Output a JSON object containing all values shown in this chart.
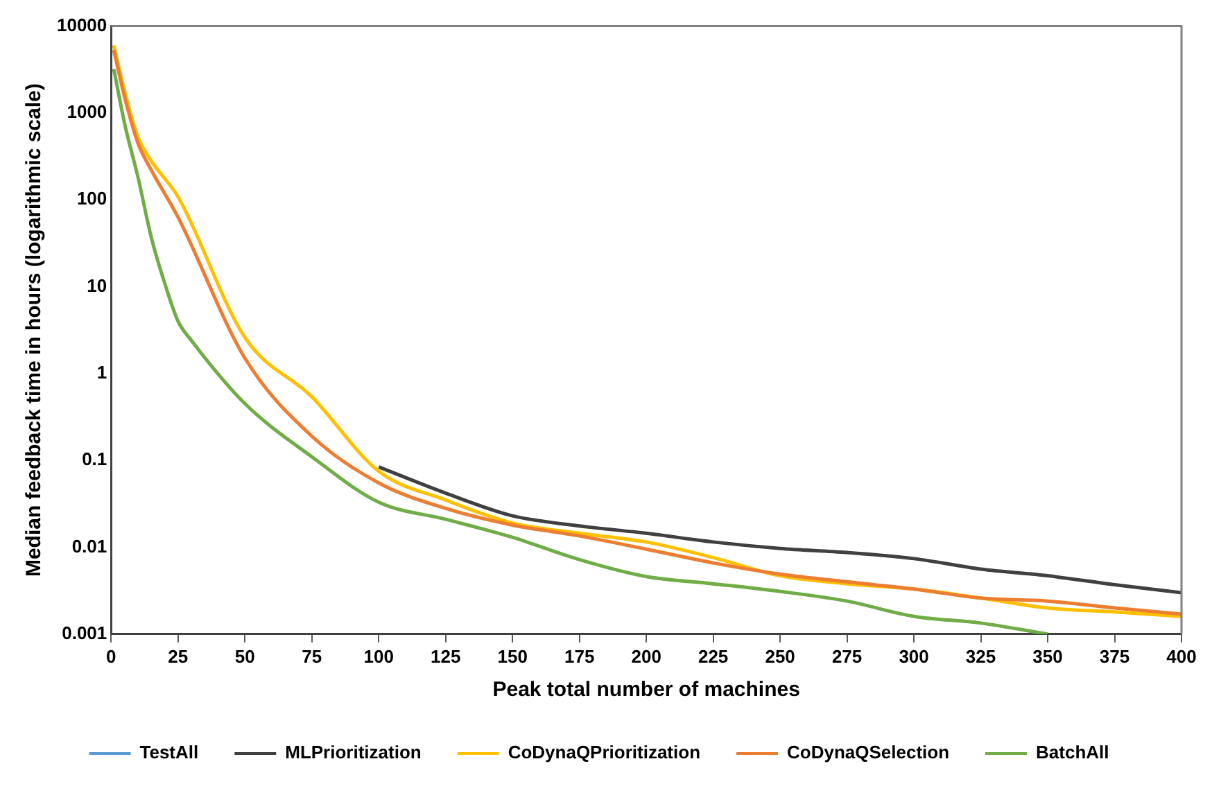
{
  "chart_data": {
    "type": "line",
    "xlabel": "Peak total number of machines",
    "ylabel": "Median feedback time in hours (logarithmic scale)",
    "x": [
      1,
      5,
      10,
      15,
      25,
      50,
      75,
      100,
      125,
      150,
      175,
      200,
      225,
      250,
      275,
      300,
      325,
      350,
      375,
      400
    ],
    "series": [
      {
        "name": "TestAll",
        "color": "#5b9bd5",
        "values": [
          null,
          null,
          null,
          null,
          null,
          null,
          null,
          null,
          null,
          null,
          null,
          null,
          null,
          null,
          null,
          null,
          null,
          null,
          null,
          null
        ]
      },
      {
        "name": "MLPrioritization",
        "color": "#404040",
        "values": [
          null,
          null,
          null,
          null,
          null,
          null,
          null,
          0.084,
          0.042,
          0.023,
          0.0176,
          0.0145,
          0.0115,
          0.0097,
          0.0087,
          0.0074,
          0.0056,
          0.0047,
          0.0037,
          0.003
        ]
      },
      {
        "name": "CoDynaQPrioritization",
        "color": "#ffc000",
        "values": [
          6000,
          1800,
          530,
          280,
          108,
          2.6,
          0.54,
          0.075,
          0.035,
          0.019,
          0.0145,
          0.0115,
          0.0076,
          0.0047,
          0.0038,
          0.0033,
          0.0026,
          0.002,
          0.0018,
          0.0016
        ]
      },
      {
        "name": "CoDynaQSelection",
        "color": "#ed7d31",
        "values": [
          5300,
          1540,
          450,
          220,
          63,
          1.5,
          0.19,
          0.055,
          0.028,
          0.018,
          0.0135,
          0.0095,
          0.0066,
          0.0049,
          0.004,
          0.0033,
          0.0026,
          0.0024,
          0.002,
          0.0017
        ]
      },
      {
        "name": "BatchAll",
        "color": "#70ad47",
        "x": [
          1,
          5,
          10,
          15,
          20,
          25,
          30,
          50,
          75,
          100,
          125,
          150,
          175,
          200,
          225,
          250,
          275,
          300,
          325,
          350
        ],
        "values": [
          3200,
          760,
          184,
          37,
          11,
          4,
          2.4,
          0.45,
          0.11,
          0.033,
          0.021,
          0.013,
          0.0072,
          0.0046,
          0.0038,
          0.0031,
          0.0024,
          0.0016,
          0.00134,
          0.001
        ]
      }
    ],
    "xlim": [
      0,
      400
    ],
    "xticks": [
      0,
      25,
      50,
      75,
      100,
      125,
      150,
      175,
      200,
      225,
      250,
      275,
      300,
      325,
      350,
      375,
      400
    ],
    "ylim": [
      0.001,
      10000
    ],
    "yticks": [
      0.001,
      0.01,
      0.1,
      1,
      10,
      100,
      1000,
      10000
    ],
    "log": "y",
    "grid": false,
    "legend": "bottom",
    "marker": "none",
    "line_style": "solid"
  }
}
